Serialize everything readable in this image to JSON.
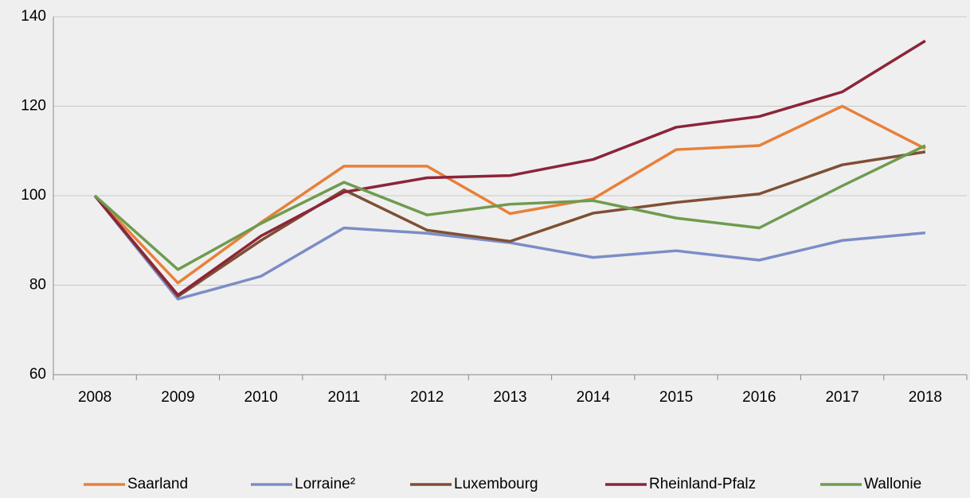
{
  "chart_data": {
    "type": "line",
    "categories": [
      "2008",
      "2009",
      "2010",
      "2011",
      "2012",
      "2013",
      "2014",
      "2015",
      "2016",
      "2017",
      "2018"
    ],
    "series": [
      {
        "name": "Saarland",
        "color": "#e8803a",
        "values": [
          100,
          80.5,
          94,
          106.6,
          106.6,
          96,
          99.3,
          110.3,
          111.2,
          120,
          110.5
        ]
      },
      {
        "name": "Lorraine²",
        "color": "#7b8dc6",
        "values": [
          100,
          76.9,
          82,
          92.8,
          91.6,
          89.5,
          86.2,
          87.7,
          85.6,
          90,
          91.7
        ]
      },
      {
        "name": "Luxembourg",
        "color": "#7f4f34",
        "values": [
          100,
          77.5,
          90,
          101.3,
          92.3,
          89.8,
          96.1,
          98.5,
          100.4,
          106.9,
          109.8
        ]
      },
      {
        "name": "Rheinland-Pfalz",
        "color": "#8b2539",
        "values": [
          100,
          77.8,
          91,
          100.8,
          104,
          104.5,
          108.1,
          115.3,
          117.7,
          123.2,
          134.6
        ]
      },
      {
        "name": "Wallonie",
        "color": "#6f9b4f",
        "values": [
          100,
          83.5,
          93.8,
          103,
          95.7,
          98.1,
          98.9,
          95,
          92.8,
          102.2,
          111.2
        ]
      }
    ],
    "ylim": [
      60,
      140
    ],
    "yticks": [
      60,
      80,
      100,
      120,
      140
    ],
    "grid": true,
    "legend": "bottom"
  }
}
